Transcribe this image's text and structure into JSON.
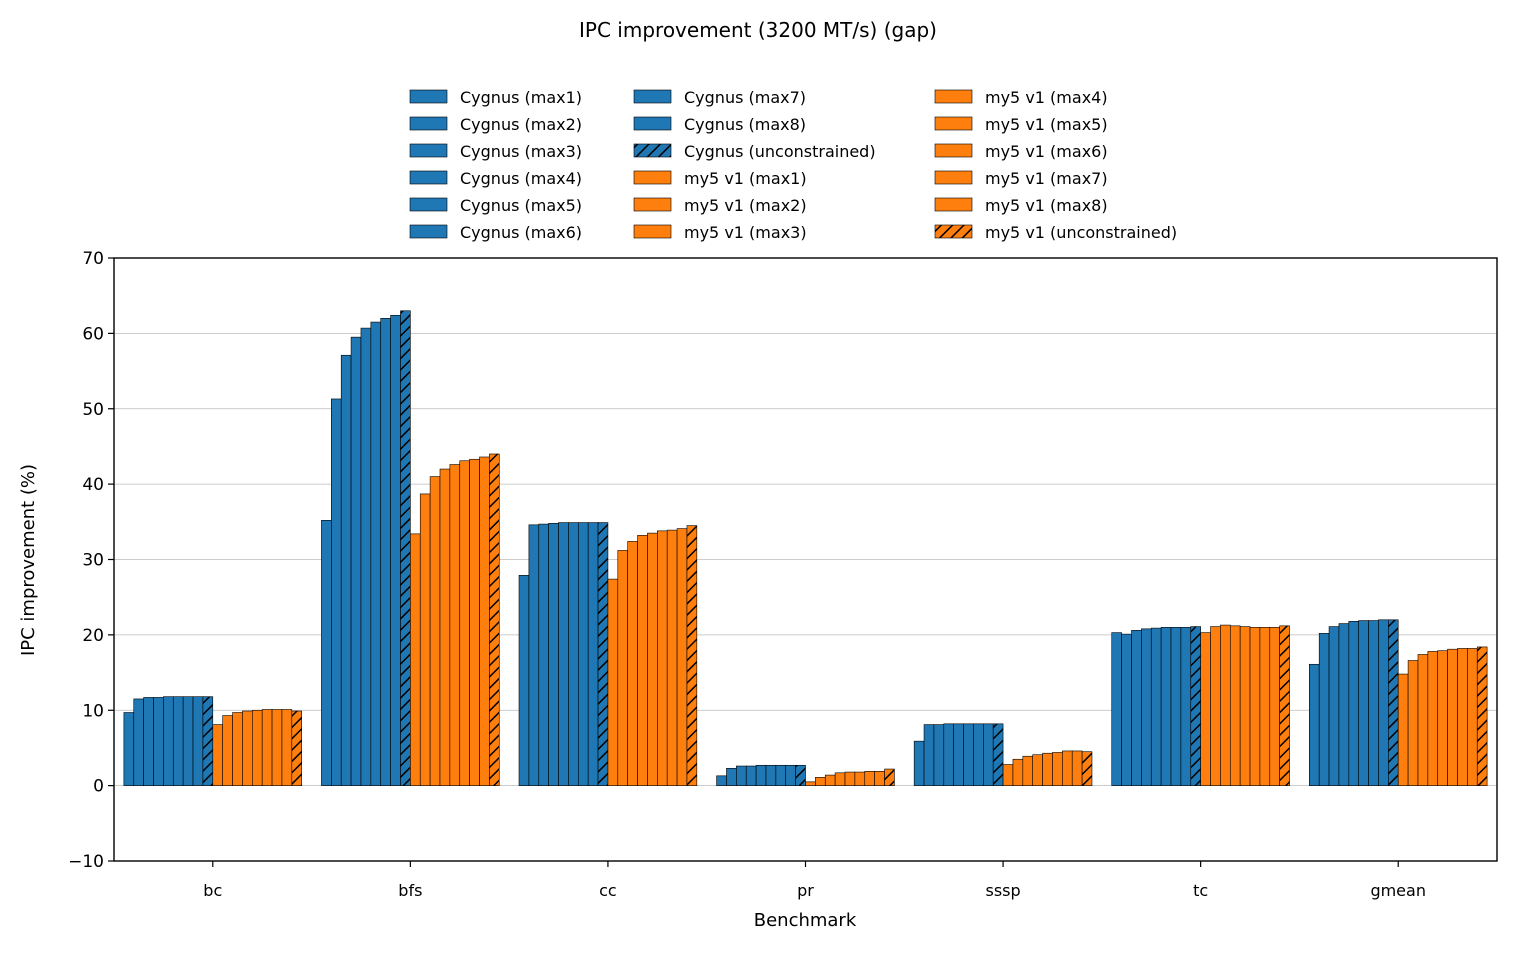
{
  "chart_data": {
    "type": "bar",
    "title": "IPC improvement (3200 MT/s) (gap)",
    "xlabel": "Benchmark",
    "ylabel": "IPC improvement (%)",
    "ylim": [
      -10,
      70
    ],
    "yticks": [
      -10,
      0,
      10,
      20,
      30,
      40,
      50,
      60,
      70
    ],
    "grid": true,
    "legend_position": "top-center",
    "categories": [
      "bc",
      "bfs",
      "cc",
      "pr",
      "sssp",
      "tc",
      "gmean"
    ],
    "colors": {
      "cygnus": "#1f77b4",
      "my5": "#ff7f0e",
      "edge": "#000000",
      "grid": "#bbbbbb"
    },
    "series": [
      {
        "name": "Cygnus (max1)",
        "group": "cygnus",
        "hatch": false,
        "values": [
          9.7,
          35.2,
          27.9,
          1.3,
          5.9,
          20.3,
          16.1
        ]
      },
      {
        "name": "Cygnus (max2)",
        "group": "cygnus",
        "hatch": false,
        "values": [
          11.5,
          51.3,
          34.6,
          2.3,
          8.1,
          20.1,
          20.2
        ]
      },
      {
        "name": "Cygnus (max3)",
        "group": "cygnus",
        "hatch": false,
        "values": [
          11.7,
          57.1,
          34.7,
          2.6,
          8.1,
          20.6,
          21.1
        ]
      },
      {
        "name": "Cygnus (max4)",
        "group": "cygnus",
        "hatch": false,
        "values": [
          11.7,
          59.5,
          34.8,
          2.6,
          8.2,
          20.8,
          21.5
        ]
      },
      {
        "name": "Cygnus (max5)",
        "group": "cygnus",
        "hatch": false,
        "values": [
          11.8,
          60.7,
          34.9,
          2.7,
          8.2,
          20.9,
          21.8
        ]
      },
      {
        "name": "Cygnus (max6)",
        "group": "cygnus",
        "hatch": false,
        "values": [
          11.8,
          61.5,
          34.9,
          2.7,
          8.2,
          21.0,
          21.9
        ]
      },
      {
        "name": "Cygnus (max7)",
        "group": "cygnus",
        "hatch": false,
        "values": [
          11.8,
          62.0,
          34.9,
          2.7,
          8.2,
          21.0,
          21.9
        ]
      },
      {
        "name": "Cygnus (max8)",
        "group": "cygnus",
        "hatch": false,
        "values": [
          11.8,
          62.4,
          34.9,
          2.7,
          8.2,
          21.0,
          22.0
        ]
      },
      {
        "name": "Cygnus (unconstrained)",
        "group": "cygnus",
        "hatch": true,
        "values": [
          11.8,
          63.0,
          34.9,
          2.7,
          8.2,
          21.1,
          22.0
        ]
      },
      {
        "name": "my5 v1 (max1)",
        "group": "my5",
        "hatch": false,
        "values": [
          8.1,
          33.4,
          27.4,
          0.5,
          2.8,
          20.3,
          14.8
        ]
      },
      {
        "name": "my5 v1 (max2)",
        "group": "my5",
        "hatch": false,
        "values": [
          9.3,
          38.7,
          31.2,
          1.1,
          3.5,
          21.1,
          16.6
        ]
      },
      {
        "name": "my5 v1 (max3)",
        "group": "my5",
        "hatch": false,
        "values": [
          9.7,
          41.0,
          32.4,
          1.4,
          3.9,
          21.3,
          17.4
        ]
      },
      {
        "name": "my5 v1 (max4)",
        "group": "my5",
        "hatch": false,
        "values": [
          9.9,
          42.0,
          33.2,
          1.7,
          4.1,
          21.2,
          17.8
        ]
      },
      {
        "name": "my5 v1 (max5)",
        "group": "my5",
        "hatch": false,
        "values": [
          10.0,
          42.6,
          33.5,
          1.8,
          4.3,
          21.1,
          17.9
        ]
      },
      {
        "name": "my5 v1 (max6)",
        "group": "my5",
        "hatch": false,
        "values": [
          10.1,
          43.1,
          33.8,
          1.8,
          4.4,
          21.0,
          18.1
        ]
      },
      {
        "name": "my5 v1 (max7)",
        "group": "my5",
        "hatch": false,
        "values": [
          10.1,
          43.3,
          33.9,
          1.9,
          4.6,
          21.0,
          18.2
        ]
      },
      {
        "name": "my5 v1 (max8)",
        "group": "my5",
        "hatch": false,
        "values": [
          10.1,
          43.6,
          34.1,
          1.9,
          4.6,
          21.0,
          18.2
        ]
      },
      {
        "name": "my5 v1 (unconstrained)",
        "group": "my5",
        "hatch": true,
        "values": [
          9.9,
          44.0,
          34.5,
          2.2,
          4.5,
          21.2,
          18.4
        ]
      }
    ]
  }
}
